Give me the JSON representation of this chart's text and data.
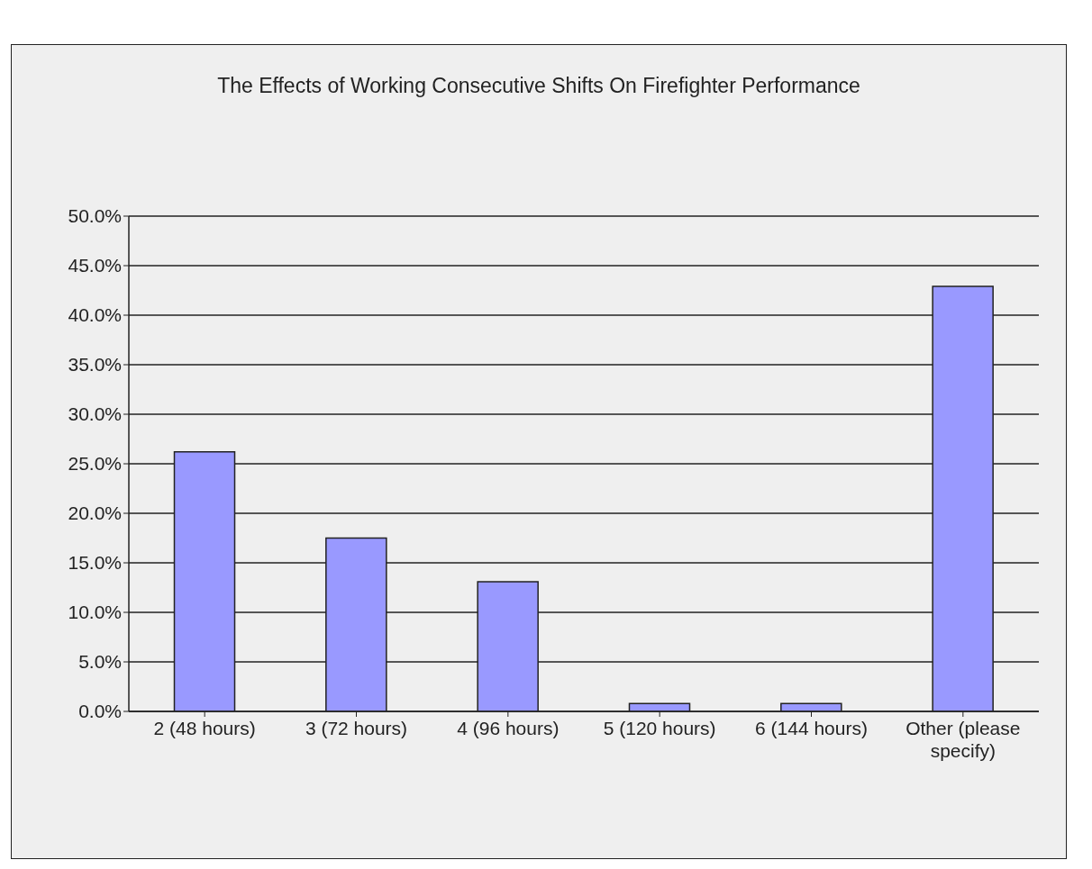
{
  "chart_data": {
    "type": "bar",
    "title": "The Effects of Working Consecutive Shifts On Firefighter Performance",
    "categories": [
      "2 (48 hours)",
      "3 (72 hours)",
      "4 (96 hours)",
      "5 (120 hours)",
      "6 (144 hours)",
      "Other (please specify)"
    ],
    "values": [
      26.2,
      17.5,
      13.1,
      0.8,
      0.8,
      42.9
    ],
    "color": "#9999ff",
    "ylim": [
      0,
      50
    ],
    "yticks": [
      {
        "value": 0,
        "label": "0.0%"
      },
      {
        "value": 5,
        "label": "5.0%"
      },
      {
        "value": 10,
        "label": "10.0%"
      },
      {
        "value": 15,
        "label": "15.0%"
      },
      {
        "value": 20,
        "label": "20.0%"
      },
      {
        "value": 25,
        "label": "25.0%"
      },
      {
        "value": 30,
        "label": "30.0%"
      },
      {
        "value": 35,
        "label": "35.0%"
      },
      {
        "value": 40,
        "label": "40.0%"
      },
      {
        "value": 45,
        "label": "45.0%"
      },
      {
        "value": 50,
        "label": "50.0%"
      }
    ],
    "grid": "y"
  }
}
